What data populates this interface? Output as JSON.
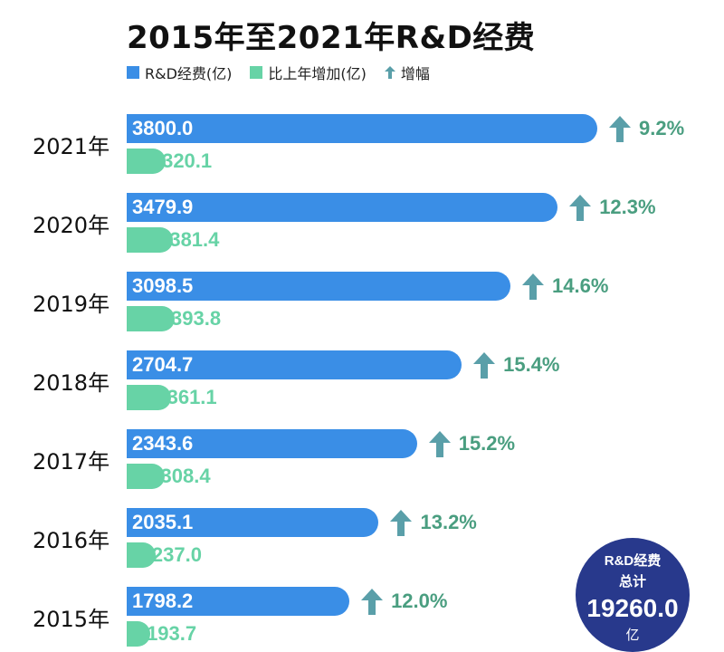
{
  "chart_data": {
    "type": "bar",
    "title": "2015年至2021年R&D经费",
    "categories": [
      "2021年",
      "2020年",
      "2019年",
      "2018年",
      "2017年",
      "2016年",
      "2015年"
    ],
    "series": [
      {
        "name": "R&D经费(亿)",
        "values": [
          3800.0,
          3479.9,
          3098.5,
          2704.7,
          2343.6,
          2035.1,
          1798.2
        ]
      },
      {
        "name": "比上年增加(亿)",
        "values": [
          320.1,
          381.4,
          393.8,
          361.1,
          308.4,
          237.0,
          193.7
        ]
      },
      {
        "name": "增幅",
        "values": [
          9.2,
          12.3,
          14.6,
          15.4,
          15.2,
          13.2,
          12.0
        ]
      }
    ],
    "main_labels": [
      "3800.0",
      "3479.9",
      "3098.5",
      "2704.7",
      "2343.6",
      "2035.1",
      "1798.2"
    ],
    "increase_labels": [
      "320.1",
      "381.4",
      "393.8",
      "361.1",
      "308.4",
      "237.0",
      "193.7"
    ],
    "growth_labels": [
      "9.2%",
      "12.3%",
      "14.6%",
      "15.4%",
      "15.2%",
      "13.2%",
      "12.0%"
    ],
    "legend_position": "top-left",
    "grid": false,
    "colors": {
      "main": "#3a8ee6",
      "increase": "#67d3a6",
      "growth": "#4a9e80",
      "growth_arrow": "#5a9fa9"
    }
  },
  "total": {
    "line1": "R&D经费",
    "line2": "总计",
    "value": "19260.0",
    "unit": "亿"
  }
}
